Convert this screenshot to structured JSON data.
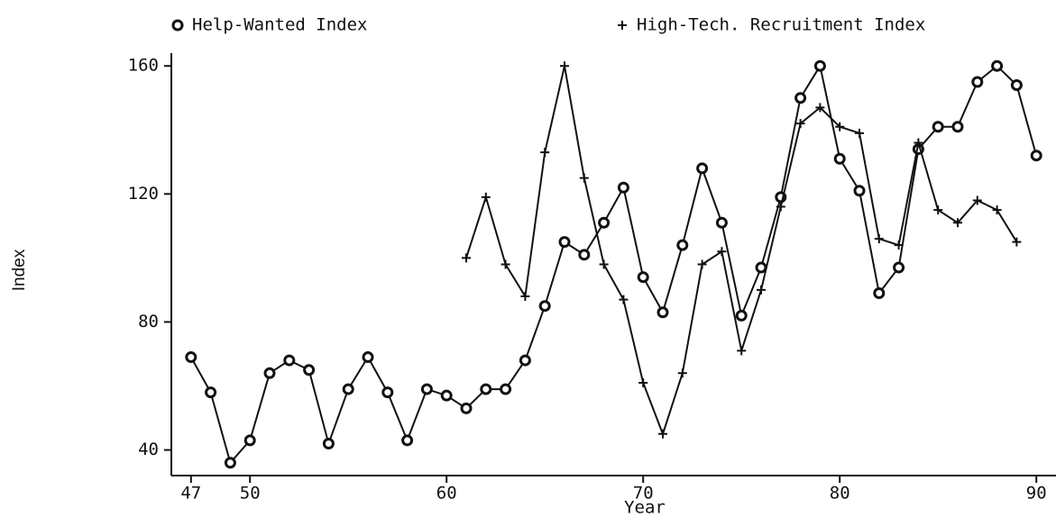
{
  "chart_data": {
    "type": "line",
    "xlabel": "Year",
    "ylabel": "Index",
    "xlim": [
      46,
      91
    ],
    "xticks": [
      47,
      50,
      60,
      70,
      80,
      90
    ],
    "ylim": [
      32,
      164
    ],
    "yticks": [
      40,
      80,
      120,
      160
    ],
    "series": [
      {
        "name": "Help-Wanted Index",
        "marker": "o",
        "color": "#111111",
        "x": [
          47,
          48,
          49,
          50,
          51,
          52,
          53,
          54,
          55,
          56,
          57,
          58,
          59,
          60,
          61,
          62,
          63,
          64,
          65,
          66,
          67,
          68,
          69,
          70,
          71,
          72,
          73,
          74,
          75,
          76,
          77,
          78,
          79,
          80,
          81,
          82,
          83,
          84,
          85,
          86,
          87,
          88,
          89,
          90
        ],
        "values": [
          69,
          58,
          36,
          43,
          64,
          68,
          65,
          42,
          59,
          69,
          58,
          43,
          59,
          57,
          53,
          59,
          59,
          68,
          85,
          105,
          101,
          111,
          122,
          94,
          83,
          104,
          128,
          111,
          82,
          97,
          119,
          150,
          160,
          131,
          121,
          89,
          97,
          134,
          141,
          141,
          155,
          160,
          154,
          132
        ]
      },
      {
        "name": "High-Tech. Recruitment Index",
        "marker": "+",
        "color": "#111111",
        "x": [
          61,
          62,
          63,
          64,
          65,
          66,
          67,
          68,
          69,
          70,
          71,
          72,
          73,
          74,
          75,
          76,
          77,
          78,
          79,
          80,
          81,
          82,
          83,
          84,
          85,
          86,
          87,
          88,
          89
        ],
        "values": [
          100,
          119,
          98,
          88,
          133,
          160,
          125,
          98,
          87,
          61,
          45,
          64,
          98,
          102,
          71,
          90,
          116,
          142,
          147,
          141,
          139,
          106,
          104,
          136,
          115,
          111,
          118,
          115,
          105
        ]
      }
    ]
  }
}
